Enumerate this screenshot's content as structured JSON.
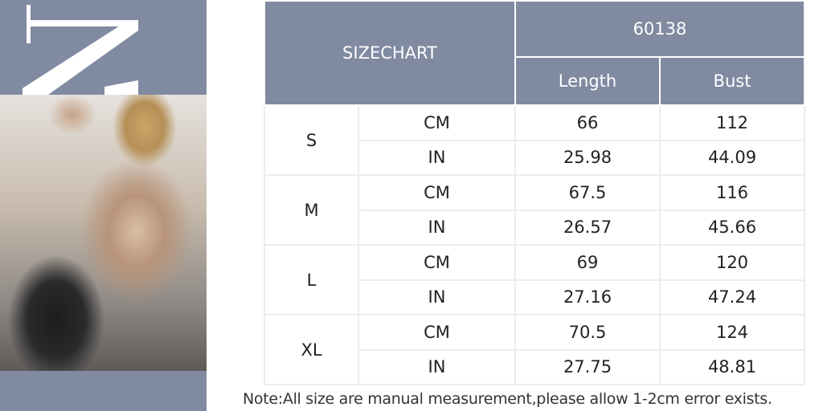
{
  "header": {
    "title": "SIZECHART",
    "model": "60138",
    "columns": [
      "Length",
      "Bust"
    ]
  },
  "rows": [
    {
      "size": "S",
      "cm": {
        "unit": "CM",
        "length": "66",
        "bust": "112"
      },
      "in": {
        "unit": "IN",
        "length": "25.98",
        "bust": "44.09"
      }
    },
    {
      "size": "M",
      "cm": {
        "unit": "CM",
        "length": "67.5",
        "bust": "116"
      },
      "in": {
        "unit": "IN",
        "length": "26.57",
        "bust": "45.66"
      }
    },
    {
      "size": "L",
      "cm": {
        "unit": "CM",
        "length": "69",
        "bust": "120"
      },
      "in": {
        "unit": "IN",
        "length": "27.16",
        "bust": "47.24"
      }
    },
    {
      "size": "XL",
      "cm": {
        "unit": "CM",
        "length": "70.5",
        "bust": "124"
      },
      "in": {
        "unit": "IN",
        "length": "27.75",
        "bust": "48.81"
      }
    }
  ],
  "note": "Note:All size are manual measurement,please allow 1-2cm error exists.",
  "colors": {
    "header_bg": "#808aa1",
    "header_text": "#ffffff",
    "grid": "#ececec"
  }
}
